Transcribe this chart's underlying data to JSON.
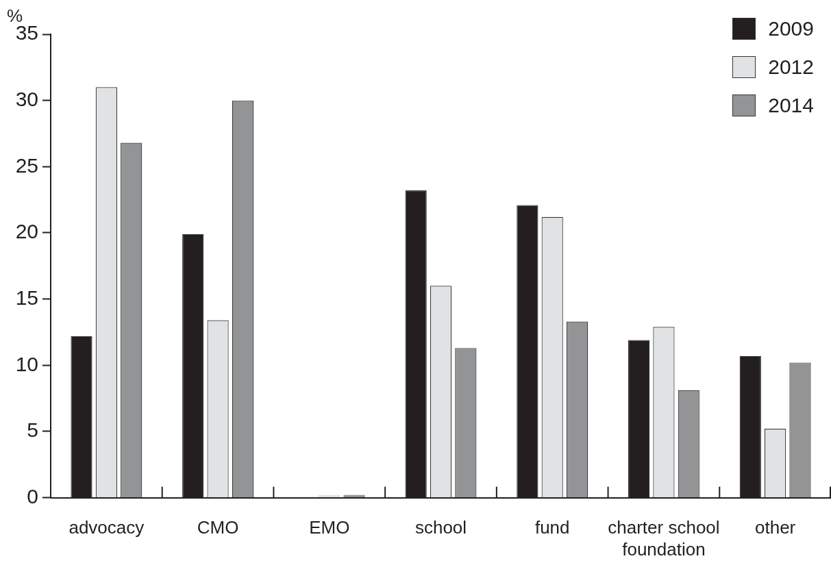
{
  "chart_data": {
    "type": "bar",
    "ylabel": "%",
    "categories": [
      "advocacy",
      "CMO",
      "EMO",
      "school",
      "fund",
      "charter school foundation",
      "other"
    ],
    "series": [
      {
        "name": "2009",
        "color": "#231f20",
        "values": [
          12.2,
          19.9,
          0,
          23.2,
          22.1,
          11.9,
          10.7
        ]
      },
      {
        "name": "2012",
        "color": "#e1e2e4",
        "values": [
          31.0,
          13.4,
          0.2,
          16.0,
          21.2,
          12.9,
          5.2
        ]
      },
      {
        "name": "2014",
        "color": "#939496",
        "values": [
          26.8,
          30.0,
          0.2,
          11.3,
          13.3,
          8.1,
          10.2
        ]
      }
    ],
    "ylim": [
      0,
      35
    ],
    "yticks": [
      0,
      5,
      10,
      15,
      20,
      25,
      30,
      35
    ],
    "legend": "top right"
  }
}
